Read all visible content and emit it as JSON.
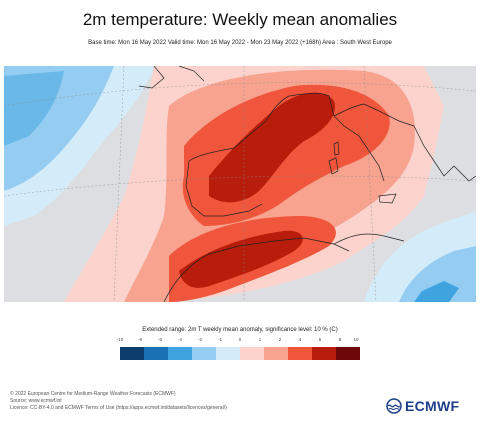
{
  "header": {
    "title": "2m temperature: Weekly mean anomalies",
    "subtitle": "Base time: Mon 16 May 2022 Valid time: Mon 16 May 2022 - Mon 23 May 2022 (+168h) Area : South West Europe"
  },
  "legend": {
    "title": "Extended range: 2m T weekly mean anomaly, significance level: 10 % (C)",
    "ticks": [
      "-10",
      "-8",
      "-6",
      "-4",
      "-2",
      "-1",
      "0",
      "1",
      "2",
      "4",
      "6",
      "8",
      "10"
    ],
    "colors": [
      "#0d3e6b",
      "#1a72b5",
      "#3fa3e0",
      "#94cdf1",
      "#d4ecf9",
      "#fbd3cc",
      "#f7a390",
      "#f0563b",
      "#b81d0b",
      "#6e0707"
    ]
  },
  "footer": {
    "line1": "© 2022 European Centre for Medium-Range Weather Forecasts (ECMWF)",
    "line2": "Source: www.ecmwf.int",
    "line3": "Licence: CC-BY-4.0 and ECMWF Terms of Use (https://apps.ecmwf.int/datasets/licences/general/)"
  },
  "brand": {
    "name": "ECMWF"
  },
  "map_colors": {
    "sea_gray": "#dcdee2",
    "light_pink": "#fbd3cc",
    "salmon": "#f7a390",
    "red": "#f0563b",
    "dark_red": "#b81d0b",
    "light_blue": "#94cdf1",
    "pale_blue": "#d4ecf9",
    "mid_blue": "#3fa3e0"
  }
}
